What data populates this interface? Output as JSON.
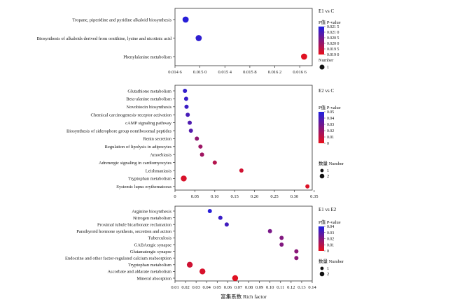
{
  "chart_data": [
    {
      "type": "scatter",
      "panel_title": "E1 vs C",
      "x_ticks": [
        "0.014 6",
        "0.015 0",
        "0.015 4",
        "0.015 8",
        "0.016 2",
        "0.016 6"
      ],
      "xlim": [
        0.0146,
        0.0168
      ],
      "categories": [
        "Tropane, piperidine and pyridine alkaloid biosynthesis",
        "Biosynthesis of alkaloids derived from ornithine, lysine and nicotinic acid",
        "Phenylalanine metabolism"
      ],
      "x": [
        0.01477,
        0.01498,
        0.01667
      ],
      "number": [
        1,
        1,
        1
      ],
      "p_value": [
        0.0214,
        0.0213,
        0.0191
      ],
      "color_label": "P值  P-value",
      "color_ticks": [
        "0.021 5",
        "0.021 0",
        "0.020 5",
        "0.020 0",
        "0.019 5",
        "0.019 0"
      ],
      "color_range": [
        0.019,
        0.0215
      ],
      "size_label": "Number",
      "size_legend": [
        "1"
      ]
    },
    {
      "type": "scatter",
      "panel_title": "E2 vs C",
      "x_ticks": [
        "0",
        "0.05",
        "0.10",
        "0.15",
        "0.20",
        "0.25",
        "0.30",
        "0.35"
      ],
      "xlim": [
        0,
        0.345
      ],
      "categories": [
        "Glutathione metabolism",
        "Beta-alanine metabolism",
        "Novobiocin biosynthesis",
        "Chemical carcinogenesis-receptor activation",
        "cAMP signaling pathway",
        "Biosynthesis of siderophore group nonribosomal peptides",
        "Renin secretion",
        "Regulation of lipolysis in adipocytes",
        "Amoebiasis",
        "Adrenergic signaling in cardiomyocytes",
        "Leishmaniasis",
        "Tryptophan metabolism",
        "Systemic lupus erythematosus"
      ],
      "x": [
        0.025,
        0.028,
        0.029,
        0.032,
        0.037,
        0.04,
        0.055,
        0.064,
        0.068,
        0.1,
        0.167,
        0.022,
        0.333
      ],
      "number": [
        1,
        1,
        1,
        1,
        1,
        1,
        1,
        1,
        1,
        1,
        1,
        2,
        1
      ],
      "p_value": [
        0.045,
        0.044,
        0.043,
        0.04,
        0.038,
        0.037,
        0.022,
        0.019,
        0.018,
        0.013,
        0.006,
        0.004,
        0.003
      ],
      "color_label": "P值  P-value",
      "color_ticks": [
        "0.05",
        "0.04",
        "0.03",
        "0.02",
        "0.01",
        "0"
      ],
      "color_range": [
        0,
        0.05
      ],
      "size_label": "数量  Number",
      "size_legend": [
        "1",
        "2"
      ]
    },
    {
      "type": "scatter",
      "panel_title": "E1 vs E2",
      "x_ticks": [
        "0.01",
        "0.02",
        "0.03",
        "0.04",
        "0.05",
        "0.06",
        "0.07",
        "0.08",
        "0.09",
        "0.10",
        "0.11",
        "0.12",
        "0.13",
        "0.14"
      ],
      "xlim": [
        0.01,
        0.14
      ],
      "categories": [
        "Arginine biosynthesis",
        "Nitrogen metabolism",
        "Proximal tubule bicarbonate reclamation",
        "Parathyroid hormone synthesis, secretion and action",
        "Tuberculosis",
        "GABAergic synapse",
        "Glutamatergic synapse",
        "Endocrine and other factor-regulated calcium reabsorption",
        "Tryptophan metabolism",
        "Ascorbate and aldarate metabolism",
        "Mineral absorption"
      ],
      "x": [
        0.043,
        0.053,
        0.059,
        0.1,
        0.111,
        0.111,
        0.125,
        0.125,
        0.024,
        0.036,
        0.067
      ],
      "number": [
        1,
        1,
        1,
        1,
        1,
        1,
        1,
        1,
        2,
        2,
        2
      ],
      "p_value": [
        0.045,
        0.041,
        0.039,
        0.026,
        0.024,
        0.024,
        0.022,
        0.022,
        0.006,
        0.004,
        0.002
      ],
      "color_label": "P值  P-value",
      "color_ticks": [
        "0.04",
        "0.03",
        "0.02",
        "0.01",
        "0"
      ],
      "color_range": [
        0,
        0.047
      ],
      "size_label": "数量  Number",
      "size_legend": [
        "1",
        "2"
      ]
    }
  ],
  "xaxis_label": "富集系数  Rich factor",
  "colors": {
    "high": "#1f1fe0",
    "low": "#e8101a"
  }
}
